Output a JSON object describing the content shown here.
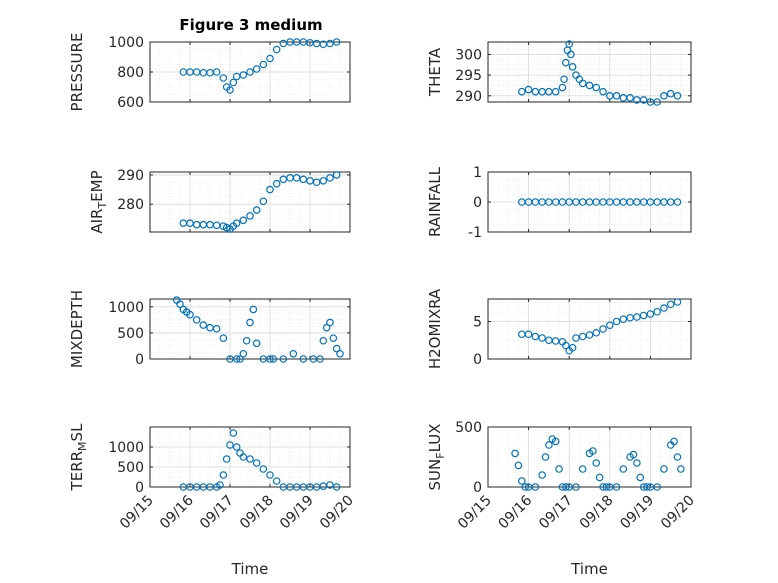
{
  "figure": {
    "title": "Figure 3 medium"
  },
  "style": {
    "marker_color": "#0072BD",
    "axis_color": "#262626",
    "grid_color": "#d9d9d9"
  },
  "chart_data": [
    {
      "type": "scatter",
      "ylabel": "PRESSURE",
      "ylim": [
        600,
        1000
      ],
      "yticks": [
        "600",
        "800",
        "1000"
      ],
      "ytick_values": [
        600,
        800,
        1000
      ],
      "xlim": [
        "09/15",
        "09/20"
      ],
      "grid": true,
      "x": [
        "09/15 20:00",
        "09/16 00:00",
        "09/16 04:00",
        "09/16 08:00",
        "09/16 12:00",
        "09/16 16:00",
        "09/16 20:00",
        "09/16 22:00",
        "09/17 00:00",
        "09/17 02:00",
        "09/17 04:00",
        "09/17 08:00",
        "09/17 12:00",
        "09/17 16:00",
        "09/17 20:00",
        "09/18 00:00",
        "09/18 04:00",
        "09/18 08:00",
        "09/18 12:00",
        "09/18 16:00",
        "09/18 20:00",
        "09/19 00:00",
        "09/19 04:00",
        "09/19 08:00",
        "09/19 12:00",
        "09/19 16:00"
      ],
      "y": [
        800,
        800,
        800,
        795,
        795,
        800,
        760,
        700,
        680,
        730,
        770,
        780,
        800,
        820,
        850,
        890,
        950,
        990,
        1000,
        1000,
        1000,
        995,
        990,
        985,
        990,
        1000
      ]
    },
    {
      "type": "scatter",
      "ylabel": "THETA",
      "ylim": [
        288.5,
        303
      ],
      "yticks": [
        "290",
        "295",
        "300"
      ],
      "ytick_values": [
        290,
        295,
        300
      ],
      "xlim": [
        "09/15",
        "09/20"
      ],
      "grid": true,
      "x": [
        "09/15 20:00",
        "09/16 00:00",
        "09/16 04:00",
        "09/16 08:00",
        "09/16 12:00",
        "09/16 16:00",
        "09/16 20:00",
        "09/16 21:00",
        "09/16 22:00",
        "09/16 23:00",
        "09/17 00:00",
        "09/17 01:00",
        "09/17 02:00",
        "09/17 04:00",
        "09/17 06:00",
        "09/17 08:00",
        "09/17 12:00",
        "09/17 16:00",
        "09/17 20:00",
        "09/18 00:00",
        "09/18 04:00",
        "09/18 08:00",
        "09/18 12:00",
        "09/18 16:00",
        "09/18 20:00",
        "09/19 00:00",
        "09/19 04:00",
        "09/19 08:00",
        "09/19 12:00",
        "09/19 16:00"
      ],
      "y": [
        291,
        291.5,
        291,
        291,
        291,
        291,
        292,
        294,
        298,
        301,
        302.5,
        300,
        297,
        295,
        294,
        293,
        292.5,
        292,
        291,
        290,
        290,
        289.5,
        289.5,
        289,
        289,
        288.5,
        288.5,
        290,
        290.5,
        290
      ]
    },
    {
      "type": "scatter",
      "ylabel": "AIR_TEMP",
      "ylabel_main": "AIR",
      "ylabel_sub": "T",
      "ylabel_rest": "EMP",
      "ylim": [
        270.5,
        291
      ],
      "yticks": [
        "280",
        "290"
      ],
      "ytick_values": [
        280,
        290
      ],
      "xlim": [
        "09/15",
        "09/20"
      ],
      "grid": true,
      "x": [
        "09/15 20:00",
        "09/16 00:00",
        "09/16 04:00",
        "09/16 08:00",
        "09/16 12:00",
        "09/16 16:00",
        "09/16 20:00",
        "09/16 22:00",
        "09/17 00:00",
        "09/17 02:00",
        "09/17 04:00",
        "09/17 08:00",
        "09/17 12:00",
        "09/17 16:00",
        "09/17 20:00",
        "09/18 00:00",
        "09/18 04:00",
        "09/18 08:00",
        "09/18 12:00",
        "09/18 16:00",
        "09/18 20:00",
        "09/19 00:00",
        "09/19 04:00",
        "09/19 08:00",
        "09/19 12:00",
        "09/19 16:00"
      ],
      "y": [
        273.5,
        273.5,
        273,
        273,
        273,
        272.8,
        272.5,
        272,
        271.5,
        272.5,
        273.5,
        274.5,
        276,
        278,
        281,
        285,
        287,
        288.5,
        289,
        289,
        288.5,
        288,
        287.5,
        288,
        289,
        290
      ]
    },
    {
      "type": "scatter",
      "ylabel": "RAINFALL",
      "ylim": [
        -1,
        1
      ],
      "yticks": [
        "-1",
        "0",
        "1"
      ],
      "ytick_values": [
        -1,
        0,
        1
      ],
      "xlim": [
        "09/15",
        "09/20"
      ],
      "grid": true,
      "x": [
        "09/15 20:00",
        "09/16 00:00",
        "09/16 04:00",
        "09/16 08:00",
        "09/16 12:00",
        "09/16 16:00",
        "09/16 20:00",
        "09/17 00:00",
        "09/17 04:00",
        "09/17 08:00",
        "09/17 12:00",
        "09/17 16:00",
        "09/17 20:00",
        "09/18 00:00",
        "09/18 04:00",
        "09/18 08:00",
        "09/18 12:00",
        "09/18 16:00",
        "09/18 20:00",
        "09/19 00:00",
        "09/19 04:00",
        "09/19 08:00",
        "09/19 12:00",
        "09/19 16:00"
      ],
      "y": [
        0,
        0,
        0,
        0,
        0,
        0,
        0,
        0,
        0,
        0,
        0,
        0,
        0,
        0,
        0,
        0,
        0,
        0,
        0,
        0,
        0,
        0,
        0,
        0
      ]
    },
    {
      "type": "scatter",
      "ylabel": "MIXDEPTH",
      "ylim": [
        0,
        1150
      ],
      "yticks": [
        "0",
        "500",
        "1000"
      ],
      "ytick_values": [
        0,
        500,
        1000
      ],
      "xlim": [
        "09/15",
        "09/20"
      ],
      "grid": true,
      "x": [
        "09/15 16:00",
        "09/15 18:00",
        "09/15 20:00",
        "09/15 22:00",
        "09/16 00:00",
        "09/16 04:00",
        "09/16 08:00",
        "09/16 12:00",
        "09/16 16:00",
        "09/16 20:00",
        "09/17 00:00",
        "09/17 04:00",
        "09/17 06:00",
        "09/17 08:00",
        "09/17 10:00",
        "09/17 12:00",
        "09/17 14:00",
        "09/17 16:00",
        "09/17 20:00",
        "09/18 00:00",
        "09/18 02:00",
        "09/18 08:00",
        "09/18 14:00",
        "09/18 20:00",
        "09/19 02:00",
        "09/19 06:00",
        "09/19 08:00",
        "09/19 10:00",
        "09/19 12:00",
        "09/19 14:00",
        "09/19 16:00",
        "09/19 18:00"
      ],
      "y": [
        1130,
        1050,
        950,
        900,
        850,
        750,
        650,
        600,
        580,
        400,
        0,
        0,
        0,
        100,
        350,
        700,
        950,
        300,
        0,
        0,
        0,
        0,
        100,
        0,
        0,
        0,
        350,
        600,
        700,
        400,
        200,
        100
      ]
    },
    {
      "type": "scatter",
      "ylabel": "H2OMIXRA",
      "ylim": [
        0,
        8
      ],
      "yticks": [
        "0",
        "5"
      ],
      "ytick_values": [
        0,
        5
      ],
      "xlim": [
        "09/15",
        "09/20"
      ],
      "grid": true,
      "x": [
        "09/15 20:00",
        "09/16 00:00",
        "09/16 04:00",
        "09/16 08:00",
        "09/16 12:00",
        "09/16 16:00",
        "09/16 20:00",
        "09/16 22:00",
        "09/17 00:00",
        "09/17 02:00",
        "09/17 04:00",
        "09/17 08:00",
        "09/17 12:00",
        "09/17 16:00",
        "09/17 20:00",
        "09/18 00:00",
        "09/18 04:00",
        "09/18 08:00",
        "09/18 12:00",
        "09/18 16:00",
        "09/18 20:00",
        "09/19 00:00",
        "09/19 04:00",
        "09/19 08:00",
        "09/19 12:00",
        "09/19 16:00"
      ],
      "y": [
        3.3,
        3.3,
        3.0,
        2.8,
        2.5,
        2.4,
        2.3,
        1.8,
        1.1,
        1.5,
        2.8,
        3.0,
        3.2,
        3.5,
        4.0,
        4.5,
        5.0,
        5.3,
        5.5,
        5.6,
        5.8,
        6.0,
        6.3,
        6.8,
        7.3,
        7.6
      ]
    },
    {
      "type": "scatter",
      "ylabel": "TERR_MSL",
      "ylabel_main": "TERR",
      "ylabel_sub": "M",
      "ylabel_rest": "SL",
      "ylim": [
        0,
        1500
      ],
      "yticks": [
        "0",
        "500",
        "1000"
      ],
      "ytick_values": [
        0,
        500,
        1000
      ],
      "xlim": [
        "09/15",
        "09/20"
      ],
      "grid": true,
      "x": [
        "09/15 20:00",
        "09/16 00:00",
        "09/16 04:00",
        "09/16 08:00",
        "09/16 12:00",
        "09/16 16:00",
        "09/16 18:00",
        "09/16 20:00",
        "09/16 22:00",
        "09/17 00:00",
        "09/17 02:00",
        "09/17 04:00",
        "09/17 06:00",
        "09/17 08:00",
        "09/17 12:00",
        "09/17 16:00",
        "09/17 20:00",
        "09/18 00:00",
        "09/18 04:00",
        "09/18 08:00",
        "09/18 12:00",
        "09/18 16:00",
        "09/18 20:00",
        "09/19 00:00",
        "09/19 04:00",
        "09/19 08:00",
        "09/19 12:00",
        "09/19 16:00"
      ],
      "y": [
        0,
        0,
        0,
        0,
        0,
        0,
        50,
        300,
        700,
        1050,
        1350,
        1000,
        850,
        750,
        700,
        600,
        450,
        300,
        150,
        0,
        0,
        0,
        0,
        0,
        0,
        20,
        50,
        0
      ]
    },
    {
      "type": "scatter",
      "ylabel": "SUN_FLUX",
      "ylabel_main": "SUN",
      "ylabel_sub": "F",
      "ylabel_rest": "LUX",
      "ylim": [
        0,
        500
      ],
      "yticks": [
        "0",
        "500"
      ],
      "ytick_values": [
        0,
        500
      ],
      "xlim": [
        "09/15",
        "09/20"
      ],
      "grid": true,
      "x": [
        "09/15 16:00",
        "09/15 18:00",
        "09/15 20:00",
        "09/15 22:00",
        "09/16 00:00",
        "09/16 04:00",
        "09/16 08:00",
        "09/16 10:00",
        "09/16 12:00",
        "09/16 14:00",
        "09/16 16:00",
        "09/16 18:00",
        "09/16 20:00",
        "09/16 22:00",
        "09/17 00:00",
        "09/17 04:00",
        "09/17 08:00",
        "09/17 12:00",
        "09/17 14:00",
        "09/17 16:00",
        "09/17 18:00",
        "09/17 20:00",
        "09/17 22:00",
        "09/18 00:00",
        "09/18 04:00",
        "09/18 08:00",
        "09/18 12:00",
        "09/18 14:00",
        "09/18 16:00",
        "09/18 18:00",
        "09/18 20:00",
        "09/18 22:00",
        "09/19 00:00",
        "09/19 04:00",
        "09/19 08:00",
        "09/19 12:00",
        "09/19 14:00",
        "09/19 16:00",
        "09/19 18:00"
      ],
      "y": [
        280,
        180,
        50,
        0,
        0,
        0,
        100,
        250,
        350,
        400,
        380,
        150,
        0,
        0,
        0,
        0,
        150,
        280,
        300,
        200,
        80,
        0,
        0,
        0,
        0,
        150,
        250,
        270,
        200,
        80,
        0,
        0,
        0,
        0,
        150,
        350,
        380,
        250,
        150
      ]
    }
  ],
  "xaxis": {
    "ticks": [
      "09/15",
      "09/16",
      "09/17",
      "09/18",
      "09/19",
      "09/20"
    ],
    "label": "Time"
  }
}
